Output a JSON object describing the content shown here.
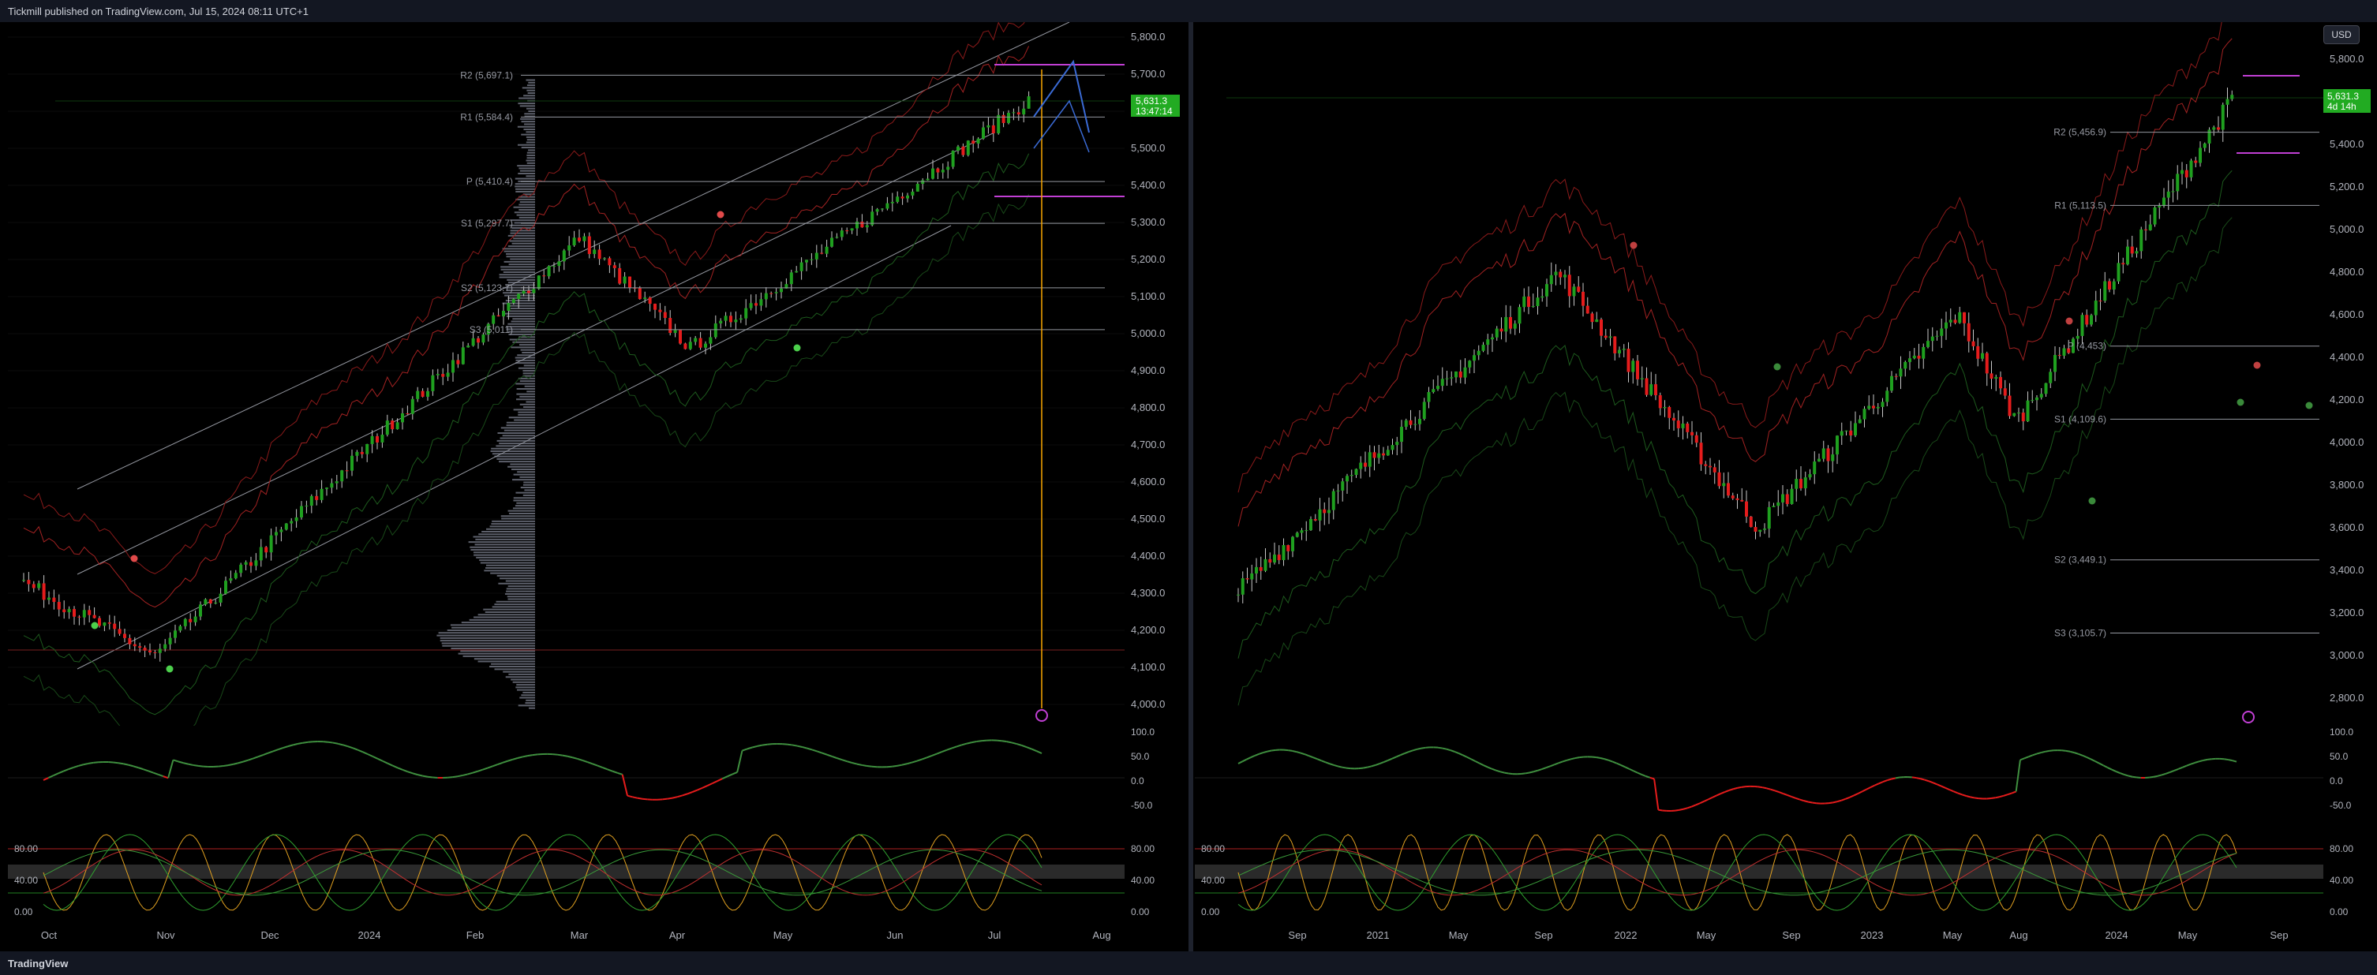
{
  "header": {
    "publish_text": "Tickmill published on TradingView.com, Jul 15, 2024 08:11 UTC+1"
  },
  "footer": {
    "brand": "TradingView"
  },
  "currency_button": "USD",
  "left_chart": {
    "price_axis": [
      "5,800.0",
      "5,700.0",
      "5,600.0",
      "5,500.0",
      "5,400.0",
      "5,300.0",
      "5,200.0",
      "5,100.0",
      "5,000.0",
      "4,900.0",
      "4,800.0",
      "4,700.0",
      "4,600.0",
      "4,500.0",
      "4,400.0",
      "4,300.0",
      "4,200.0",
      "4,100.0",
      "4,000.0"
    ],
    "last_price": "5,631.3",
    "countdown": "13:47:14",
    "pivots": [
      {
        "label": "R2 (5,697.1)",
        "value": 5697.1
      },
      {
        "label": "R1 (5,584.4)",
        "value": 5584.4
      },
      {
        "label": "P (5,410.4)",
        "value": 5410.4
      },
      {
        "label": "S1 (5,297.7)",
        "value": 5297.7
      },
      {
        "label": "S2 (5,123.7)",
        "value": 5123.7
      },
      {
        "label": "S3 (5,011)",
        "value": 5011
      }
    ],
    "time_axis": [
      "Oct",
      "Nov",
      "Dec",
      "2024",
      "Feb",
      "Mar",
      "Apr",
      "May",
      "Jun",
      "Jul",
      "Aug"
    ],
    "rsi_axis": [
      "100.0",
      "50.0",
      "0.0",
      "-50.0"
    ],
    "stoch_axis": [
      "80.00",
      "40.00",
      "0.00"
    ],
    "stoch_axis_right": [
      "80.00",
      "40.00",
      "0.00"
    ]
  },
  "right_chart": {
    "price_axis": [
      "5,800.0",
      "5,600.0",
      "5,400.0",
      "5,200.0",
      "5,000.0",
      "4,800.0",
      "4,600.0",
      "4,400.0",
      "4,200.0",
      "4,000.0",
      "3,800.0",
      "3,600.0",
      "3,400.0",
      "3,200.0",
      "3,000.0",
      "2,800.0"
    ],
    "last_price": "5,631.3",
    "countdown": "4d 14h",
    "pivots": [
      {
        "label": "R2 (5,456.9)",
        "value": 5456.9
      },
      {
        "label": "R1 (5,113.5)",
        "value": 5113.5
      },
      {
        "label": "P (4,453)",
        "value": 4453
      },
      {
        "label": "S1 (4,109.6)",
        "value": 4109.6
      },
      {
        "label": "S2 (3,449.1)",
        "value": 3449.1
      },
      {
        "label": "S3 (3,105.7)",
        "value": 3105.7
      }
    ],
    "time_axis": [
      "Sep",
      "2021",
      "May",
      "Sep",
      "2022",
      "May",
      "Sep",
      "2023",
      "May",
      "Aug",
      "2024",
      "May",
      "Sep"
    ],
    "rsi_axis": [
      "100.0",
      "50.0",
      "0.0",
      "-50.0"
    ],
    "stoch_axis": [
      "80.00",
      "40.00",
      "0.00"
    ],
    "stoch_axis_right": [
      "80.00",
      "40.00",
      "0.00"
    ]
  },
  "colors": {
    "up": "#089981",
    "bull": "#1fa01f",
    "bear": "#e51c1c",
    "pivot": "#9598a1",
    "accent": "#f7a600",
    "purple": "#c13fd4",
    "price_tag": "#22ab22"
  }
}
